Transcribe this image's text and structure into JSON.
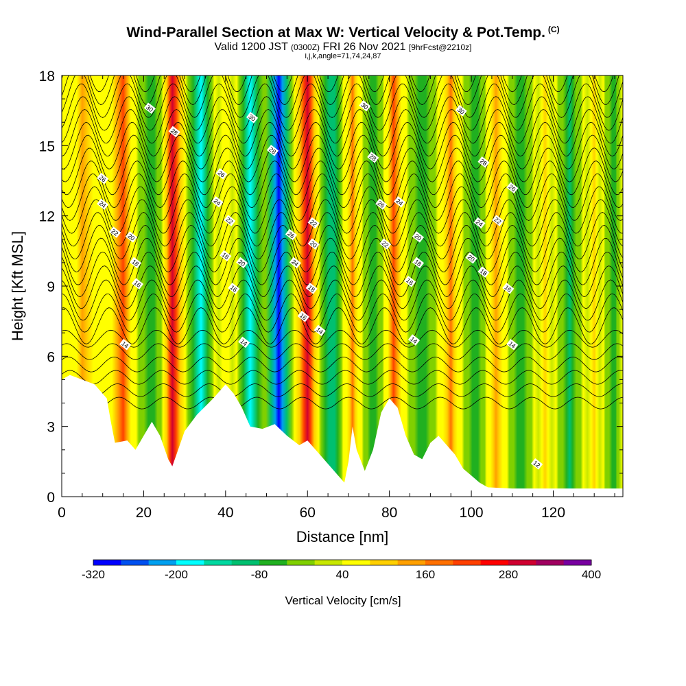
{
  "title": {
    "main": "Wind-Parallel Section at Max W: Vertical Velocity & Pot.Temp.",
    "main_suffix": "(C)",
    "valid_prefix": "Valid 1200 JST",
    "valid_utc": "(0300Z)",
    "valid_date": "FRI 26 Nov 2021",
    "valid_fcst": "[9hrFcst@2210z]",
    "indices": "i,j,k,angle=71,74,24,87"
  },
  "chart_data": {
    "type": "heatmap",
    "xlabel": "Distance [nm]",
    "ylabel": "Height [Kft MSL]",
    "xlim": [
      0,
      137
    ],
    "ylim": [
      0,
      18
    ],
    "x_ticks": [
      0,
      20,
      40,
      60,
      80,
      100,
      120
    ],
    "y_ticks": [
      0,
      3,
      6,
      9,
      12,
      15,
      18
    ],
    "colorbar": {
      "label": "Vertical Velocity [cm/s]",
      "tick_labels": [
        "-320",
        "-200",
        "-80",
        "40",
        "160",
        "280",
        "400"
      ],
      "min": -320,
      "max": 400,
      "colors": [
        "#0000ff",
        "#0050f0",
        "#00a0f0",
        "#00ffff",
        "#00d8a0",
        "#00c070",
        "#20b020",
        "#80d000",
        "#c8e800",
        "#ffff00",
        "#ffd000",
        "#ffa000",
        "#ff7000",
        "#ff4000",
        "#ff0000",
        "#d00030",
        "#a00060",
        "#7800a0"
      ]
    },
    "velocity_bands": [
      {
        "x": 5,
        "w": 150
      },
      {
        "x": 15,
        "w": 200
      },
      {
        "x": 22,
        "w": -70
      },
      {
        "x": 27,
        "w": 300
      },
      {
        "x": 34,
        "w": -200
      },
      {
        "x": 40,
        "w": 60
      },
      {
        "x": 46,
        "w": -170
      },
      {
        "x": 53,
        "w": -300
      },
      {
        "x": 60,
        "w": 300
      },
      {
        "x": 66,
        "w": -120
      },
      {
        "x": 71,
        "w": 170
      },
      {
        "x": 76,
        "w": -60
      },
      {
        "x": 81,
        "w": 200
      },
      {
        "x": 88,
        "w": -80
      },
      {
        "x": 95,
        "w": 170
      },
      {
        "x": 101,
        "w": -60
      },
      {
        "x": 106,
        "w": 150
      },
      {
        "x": 112,
        "w": -70
      },
      {
        "x": 118,
        "w": 90
      },
      {
        "x": 124,
        "w": -100
      },
      {
        "x": 130,
        "w": 80
      },
      {
        "x": 135,
        "w": -60
      }
    ],
    "terrain": [
      [
        0,
        5.0
      ],
      [
        2,
        5.2
      ],
      [
        8,
        4.8
      ],
      [
        11,
        4.2
      ],
      [
        12,
        3.2
      ],
      [
        13,
        2.3
      ],
      [
        16,
        2.4
      ],
      [
        18,
        2.0
      ],
      [
        20,
        2.6
      ],
      [
        22,
        3.2
      ],
      [
        24,
        2.6
      ],
      [
        26,
        1.6
      ],
      [
        27,
        1.3
      ],
      [
        28,
        1.8
      ],
      [
        30,
        2.8
      ],
      [
        33,
        3.5
      ],
      [
        37,
        4.2
      ],
      [
        40,
        4.8
      ],
      [
        42,
        4.4
      ],
      [
        44,
        3.8
      ],
      [
        46,
        3.0
      ],
      [
        49,
        2.9
      ],
      [
        52,
        3.1
      ],
      [
        55,
        2.6
      ],
      [
        58,
        2.2
      ],
      [
        60,
        2.4
      ],
      [
        63,
        1.8
      ],
      [
        66,
        1.2
      ],
      [
        68,
        0.8
      ],
      [
        69,
        0.6
      ],
      [
        70,
        1.5
      ],
      [
        71,
        3.0
      ],
      [
        72,
        2.0
      ],
      [
        74,
        1.1
      ],
      [
        76,
        2.0
      ],
      [
        78,
        3.6
      ],
      [
        80,
        4.2
      ],
      [
        82,
        3.8
      ],
      [
        84,
        2.6
      ],
      [
        86,
        1.8
      ],
      [
        88,
        1.6
      ],
      [
        90,
        2.3
      ],
      [
        92,
        2.6
      ],
      [
        94,
        2.2
      ],
      [
        96,
        1.8
      ],
      [
        98,
        1.2
      ],
      [
        100,
        0.9
      ],
      [
        102,
        0.6
      ],
      [
        104,
        0.4
      ],
      [
        110,
        0.35
      ],
      [
        137,
        0.35
      ]
    ],
    "isentropes": [
      12,
      14,
      16,
      18,
      20,
      22,
      24,
      26,
      28,
      30
    ],
    "contour_labels": [
      {
        "x": 21.5,
        "y": 16.6,
        "t": "30"
      },
      {
        "x": 27.5,
        "y": 15.6,
        "t": "28"
      },
      {
        "x": 10,
        "y": 13.6,
        "t": "26"
      },
      {
        "x": 10,
        "y": 12.5,
        "t": "24"
      },
      {
        "x": 13,
        "y": 11.3,
        "t": "22"
      },
      {
        "x": 17,
        "y": 11.1,
        "t": "20"
      },
      {
        "x": 18,
        "y": 10.0,
        "t": "18"
      },
      {
        "x": 18.5,
        "y": 9.1,
        "t": "16"
      },
      {
        "x": 15.5,
        "y": 6.5,
        "t": "14"
      },
      {
        "x": 46.5,
        "y": 16.2,
        "t": "30"
      },
      {
        "x": 51.5,
        "y": 14.8,
        "t": "28"
      },
      {
        "x": 39,
        "y": 13.8,
        "t": "26"
      },
      {
        "x": 38,
        "y": 12.6,
        "t": "24"
      },
      {
        "x": 41,
        "y": 11.8,
        "t": "22"
      },
      {
        "x": 40,
        "y": 10.3,
        "t": "18"
      },
      {
        "x": 44,
        "y": 10.0,
        "t": "20"
      },
      {
        "x": 42,
        "y": 8.9,
        "t": "16"
      },
      {
        "x": 44.5,
        "y": 6.6,
        "t": "14"
      },
      {
        "x": 56,
        "y": 11.2,
        "t": "26"
      },
      {
        "x": 61.5,
        "y": 11.7,
        "t": "22"
      },
      {
        "x": 61.5,
        "y": 10.8,
        "t": "20"
      },
      {
        "x": 57,
        "y": 10.0,
        "t": "24"
      },
      {
        "x": 61,
        "y": 8.9,
        "t": "18"
      },
      {
        "x": 59,
        "y": 7.7,
        "t": "16"
      },
      {
        "x": 63,
        "y": 7.1,
        "t": "14"
      },
      {
        "x": 74,
        "y": 16.7,
        "t": "30"
      },
      {
        "x": 76,
        "y": 14.5,
        "t": "28"
      },
      {
        "x": 78,
        "y": 12.5,
        "t": "26"
      },
      {
        "x": 82.5,
        "y": 12.6,
        "t": "24"
      },
      {
        "x": 79,
        "y": 10.8,
        "t": "22"
      },
      {
        "x": 87,
        "y": 11.1,
        "t": "20"
      },
      {
        "x": 87,
        "y": 10.0,
        "t": "18"
      },
      {
        "x": 85,
        "y": 9.2,
        "t": "16"
      },
      {
        "x": 86,
        "y": 6.7,
        "t": "14"
      },
      {
        "x": 97.5,
        "y": 16.5,
        "t": "30"
      },
      {
        "x": 103,
        "y": 14.3,
        "t": "28"
      },
      {
        "x": 110,
        "y": 13.2,
        "t": "26"
      },
      {
        "x": 102,
        "y": 11.7,
        "t": "24"
      },
      {
        "x": 106.5,
        "y": 11.8,
        "t": "22"
      },
      {
        "x": 100,
        "y": 10.2,
        "t": "20"
      },
      {
        "x": 103,
        "y": 9.6,
        "t": "18"
      },
      {
        "x": 109,
        "y": 8.9,
        "t": "16"
      },
      {
        "x": 110,
        "y": 6.5,
        "t": "14"
      },
      {
        "x": 116,
        "y": 1.4,
        "t": "12"
      }
    ]
  }
}
